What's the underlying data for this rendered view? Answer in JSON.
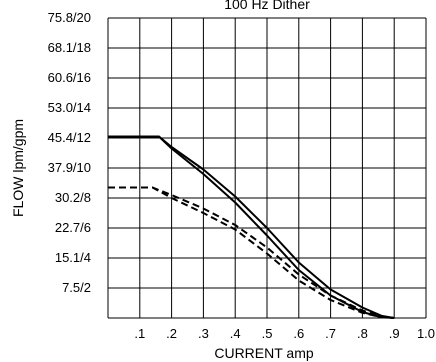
{
  "chart_data": {
    "type": "line",
    "title": "100 Hz Dither",
    "xlabel": "CURRENT amp",
    "ylabel": "FLOW lpm/gpm",
    "xlim": [
      0,
      1.0
    ],
    "ylim": [
      0,
      20
    ],
    "grid": true,
    "x_ticks": [
      ".1",
      ".2",
      ".3",
      ".4",
      ".5",
      ".6",
      ".7",
      ".8",
      ".9",
      "1.0"
    ],
    "y_ticks": [
      "7.5/2",
      "15.1/4",
      "22.7/6",
      "30.2/8",
      "37.9/10",
      "45.4/12",
      "53.0/14",
      "60.6/16",
      "68.1/18",
      "75.8/20"
    ],
    "series": [
      {
        "style": "solid",
        "x": [
          0,
          0.16,
          0.2,
          0.3,
          0.4,
          0.5,
          0.6,
          0.7,
          0.8,
          0.86,
          0.9
        ],
        "y": [
          12.1,
          12.1,
          11.4,
          9.9,
          8.1,
          6.0,
          3.7,
          1.9,
          0.7,
          0.15,
          0
        ]
      },
      {
        "style": "solid",
        "x": [
          0,
          0.16,
          0.2,
          0.3,
          0.4,
          0.5,
          0.6,
          0.7,
          0.8,
          0.86,
          0.9
        ],
        "y": [
          12.1,
          12.1,
          11.3,
          9.6,
          7.7,
          5.5,
          3.2,
          1.5,
          0.4,
          0.05,
          0
        ]
      },
      {
        "style": "dashed",
        "x": [
          0,
          0.14,
          0.2,
          0.3,
          0.4,
          0.5,
          0.6,
          0.7,
          0.8,
          0.86,
          0.9
        ],
        "y": [
          8.7,
          8.7,
          8.2,
          7.3,
          6.2,
          4.7,
          2.9,
          1.5,
          0.5,
          0.1,
          0
        ]
      },
      {
        "style": "dashed",
        "x": [
          0,
          0.14,
          0.2,
          0.3,
          0.4,
          0.5,
          0.6,
          0.7,
          0.8,
          0.86,
          0.9
        ],
        "y": [
          8.7,
          8.7,
          8.0,
          7.0,
          5.9,
          4.3,
          2.5,
          1.2,
          0.35,
          0.05,
          0
        ]
      }
    ]
  }
}
